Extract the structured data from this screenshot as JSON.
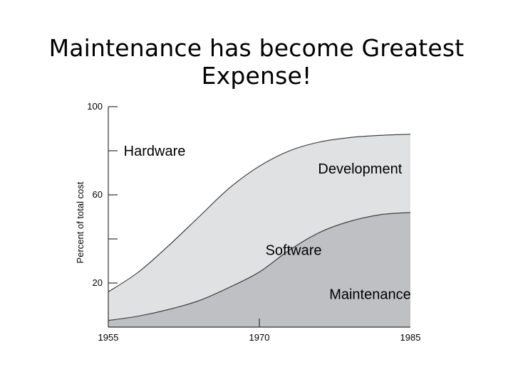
{
  "slide": {
    "title": "Maintenance has become Greatest Expense!"
  },
  "chart_data": {
    "type": "area",
    "title": "",
    "xlabel": "",
    "ylabel": "Percent of total cost",
    "xlim": [
      1955,
      1985
    ],
    "ylim": [
      0,
      100
    ],
    "x_ticks": [
      1955,
      1970,
      1985
    ],
    "x_tick_labels": [
      "1955",
      "1970",
      "1985"
    ],
    "y_ticks": [
      20,
      40,
      60,
      80,
      100
    ],
    "y_tick_labels": [
      "20",
      "",
      "60",
      "",
      "100"
    ],
    "grid": false,
    "curves": [
      {
        "name": "Hardware / Software boundary",
        "x": [
          1955,
          1958,
          1961,
          1964,
          1967,
          1970,
          1973,
          1976,
          1979,
          1982,
          1985
        ],
        "y": [
          16,
          25,
          37,
          50,
          63,
          73,
          80,
          84,
          86,
          87,
          87.5
        ]
      },
      {
        "name": "Development / Maintenance boundary",
        "x": [
          1955,
          1958,
          1961,
          1964,
          1967,
          1970,
          1973,
          1976,
          1979,
          1982,
          1985
        ],
        "y": [
          3,
          5,
          8,
          12,
          18,
          25,
          35,
          43,
          48,
          51,
          52
        ]
      }
    ],
    "region_colors": {
      "hardware": "#ffffff",
      "software_development": "#e0e1e3",
      "software_maintenance": "#bfc0c4"
    },
    "annotations": [
      {
        "text": "Hardware",
        "x": 1959.6,
        "y": 80
      },
      {
        "text": "Development",
        "x": 1980,
        "y": 72
      },
      {
        "text": "Software",
        "x": 1973.4,
        "y": 35
      },
      {
        "text": "Maintenance",
        "x": 1981,
        "y": 15
      }
    ]
  }
}
